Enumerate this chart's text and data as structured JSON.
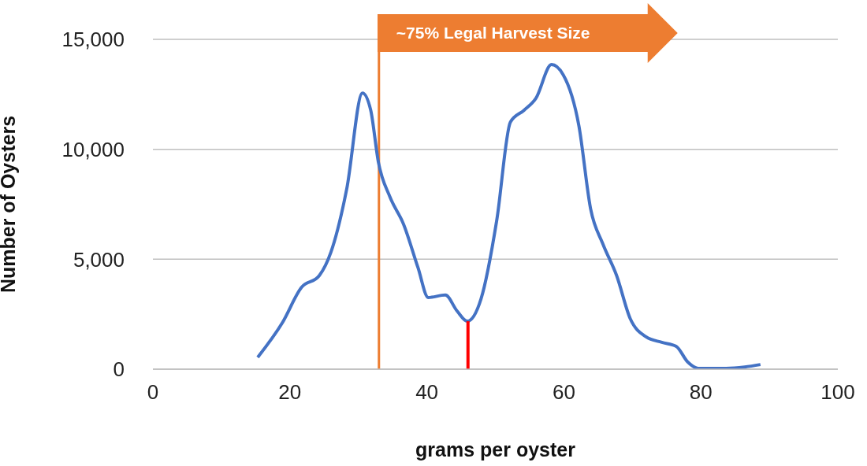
{
  "chart_data": {
    "type": "line",
    "xlabel": "grams per oyster",
    "ylabel": "Number of Oysters",
    "xlim": [
      0,
      100
    ],
    "xticks": [
      0,
      20,
      40,
      60,
      80,
      100
    ],
    "ylim": [
      0,
      15000
    ],
    "yticks": [
      {
        "value": 0,
        "label": "0"
      },
      {
        "value": 5000,
        "label": "5,000"
      },
      {
        "value": 10000,
        "label": "10,000"
      },
      {
        "value": 15000,
        "label": "15,000"
      }
    ],
    "grid": "y",
    "marker": "none",
    "line_style": "solid",
    "annotations": [
      "~75% Legal Harvest Size"
    ],
    "ref_lines": [
      {
        "axis": "x",
        "value": 33,
        "color": "#ed7d31"
      }
    ],
    "series": [
      {
        "color": "#4472c4",
        "x": [
          15.3,
          18.9,
          21.7,
          24.3,
          26,
          28.3,
          30.6,
          31.8,
          32.9,
          34.6,
          36.6,
          38.7,
          40.2,
          42.7,
          44.4,
          45.9,
          47.9,
          50.2,
          52.2,
          54.2,
          55.9,
          58.2,
          59.9,
          62.2,
          63.9,
          65.7,
          67.7,
          69.7,
          72,
          74.3,
          76.4,
          78.1,
          79.6,
          83.7,
          86.4,
          88.7
        ],
        "values": [
          540,
          2110,
          3720,
          4260,
          5330,
          8200,
          12560,
          11780,
          9450,
          7840,
          6590,
          4620,
          3260,
          3370,
          2650,
          2180,
          3190,
          6770,
          11240,
          11780,
          12310,
          13850,
          13390,
          11060,
          7300,
          5690,
          4260,
          2290,
          1470,
          1220,
          1040,
          320,
          40,
          40,
          100,
          210
        ]
      },
      {
        "color": "#ff0000",
        "x": [
          46,
          46
        ],
        "values": [
          0,
          2180
        ]
      }
    ]
  }
}
